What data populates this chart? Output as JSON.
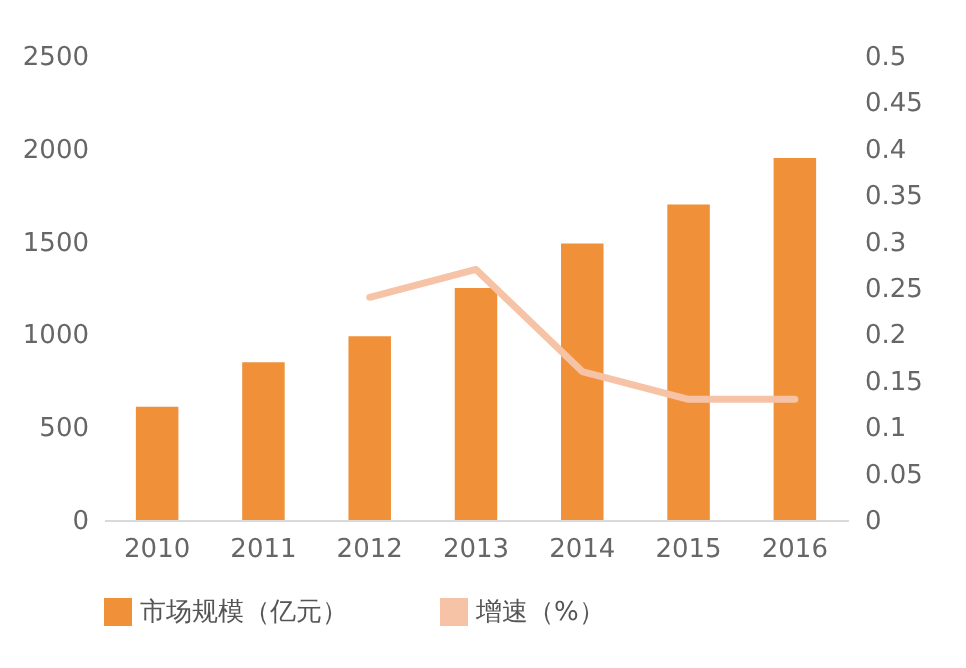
{
  "chart_data": {
    "type": "bar",
    "categories": [
      "2010",
      "2011",
      "2012",
      "2013",
      "2014",
      "2015",
      "2016"
    ],
    "series": [
      {
        "name": "市场规模（亿元）",
        "color": "#f0913a",
        "values": [
          610,
          850,
          990,
          1250,
          1490,
          1700,
          1950
        ]
      },
      {
        "name": "增速（%）",
        "type": "line",
        "axis": "y2",
        "color": "#f6c3a6",
        "values": [
          null,
          null,
          0.24,
          0.27,
          0.16,
          0.13,
          0.13
        ]
      }
    ],
    "ylim": [
      0,
      2500
    ],
    "yticks": [
      0,
      500,
      1000,
      1500,
      2000,
      2500
    ],
    "y2lim": [
      0,
      0.5
    ],
    "y2ticks": [
      0,
      0.05,
      0.1,
      0.15,
      0.2,
      0.25,
      0.3,
      0.35,
      0.4,
      0.45,
      0.5
    ],
    "grid": false,
    "legend": "bottom"
  }
}
